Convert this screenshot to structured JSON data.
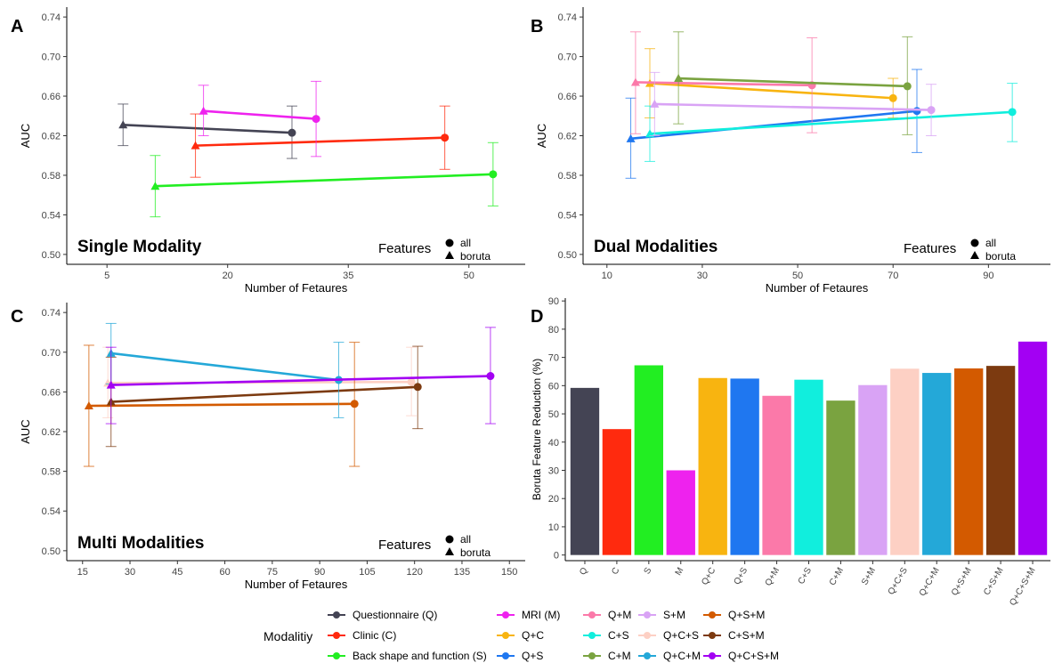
{
  "colors": {
    "Q": "#444454",
    "C": "#ff2a0e",
    "S": "#22ee22",
    "M": "#ee22ee",
    "Q+C": "#f8b410",
    "Q+S": "#1f77f0",
    "Q+M": "#fb79a9",
    "C+S": "#11eedd",
    "C+M": "#7aa340",
    "S+M": "#d9a3f5",
    "Q+C+S": "#fdd0c4",
    "Q+C+M": "#24a8d8",
    "Q+S+M": "#d35a00",
    "C+S+M": "#7c3a10",
    "Q+C+S+M": "#a300f3"
  },
  "panels": {
    "A": {
      "letter": "A",
      "inset_title": "Single Modality",
      "legend_title": "Features",
      "legend_all": "all",
      "legend_boruta": "boruta"
    },
    "B": {
      "letter": "B",
      "inset_title": "Dual Modalities",
      "legend_title": "Features",
      "legend_all": "all",
      "legend_boruta": "boruta"
    },
    "C": {
      "letter": "C",
      "inset_title": "Multi Modalities",
      "legend_title": "Features",
      "legend_all": "all",
      "legend_boruta": "boruta"
    },
    "D": {
      "letter": "D"
    }
  },
  "modality_legend": {
    "title": "Modalitiy",
    "items": [
      {
        "key": "Q",
        "label": "Questionnaire (Q)"
      },
      {
        "key": "C",
        "label": "Clinic (C)"
      },
      {
        "key": "S",
        "label": "Back shape and function (S)"
      },
      {
        "key": "M",
        "label": "MRI (M)"
      },
      {
        "key": "Q+C",
        "label": "Q+C"
      },
      {
        "key": "Q+S",
        "label": "Q+S"
      },
      {
        "key": "Q+M",
        "label": "Q+M"
      },
      {
        "key": "C+S",
        "label": "C+S"
      },
      {
        "key": "C+M",
        "label": "C+M"
      },
      {
        "key": "S+M",
        "label": "S+M"
      },
      {
        "key": "Q+C+S",
        "label": "Q+C+S"
      },
      {
        "key": "Q+C+M",
        "label": "Q+C+M"
      },
      {
        "key": "Q+S+M",
        "label": "Q+S+M"
      },
      {
        "key": "C+S+M",
        "label": "C+S+M"
      },
      {
        "key": "Q+C+S+M",
        "label": "Q+C+S+M"
      }
    ]
  },
  "chart_data": [
    {
      "panel": "A",
      "type": "line",
      "xlabel": "Number of Fetaures",
      "ylabel": "AUC",
      "xlim": [
        0,
        57
      ],
      "ylim": [
        0.49,
        0.75
      ],
      "xticks": [
        5,
        20,
        35,
        50
      ],
      "yticks": [
        "0.50",
        "0.54",
        "0.58",
        "0.62",
        "0.66",
        "0.70",
        "0.74"
      ],
      "series": [
        {
          "key": "Q",
          "boruta": {
            "x": 7,
            "y": 0.631,
            "lo": 0.61,
            "hi": 0.652
          },
          "all": {
            "x": 28,
            "y": 0.623,
            "lo": 0.597,
            "hi": 0.65
          }
        },
        {
          "key": "C",
          "boruta": {
            "x": 16,
            "y": 0.61,
            "lo": 0.578,
            "hi": 0.642
          },
          "all": {
            "x": 47,
            "y": 0.618,
            "lo": 0.586,
            "hi": 0.65
          }
        },
        {
          "key": "S",
          "boruta": {
            "x": 11,
            "y": 0.569,
            "lo": 0.538,
            "hi": 0.6
          },
          "all": {
            "x": 53,
            "y": 0.581,
            "lo": 0.549,
            "hi": 0.613
          }
        },
        {
          "key": "M",
          "boruta": {
            "x": 17,
            "y": 0.645,
            "lo": 0.62,
            "hi": 0.671
          },
          "all": {
            "x": 31,
            "y": 0.637,
            "lo": 0.599,
            "hi": 0.675
          }
        }
      ]
    },
    {
      "panel": "B",
      "type": "line",
      "xlabel": "Number of Fetaures",
      "ylabel": "AUC",
      "xlim": [
        5,
        103
      ],
      "ylim": [
        0.49,
        0.75
      ],
      "xticks": [
        10,
        30,
        50,
        70,
        90
      ],
      "yticks": [
        "0.50",
        "0.54",
        "0.58",
        "0.62",
        "0.66",
        "0.70",
        "0.74"
      ],
      "series": [
        {
          "key": "Q+C",
          "boruta": {
            "x": 19,
            "y": 0.673,
            "lo": 0.638,
            "hi": 0.708
          },
          "all": {
            "x": 70,
            "y": 0.658,
            "lo": 0.638,
            "hi": 0.678
          }
        },
        {
          "key": "Q+S",
          "boruta": {
            "x": 15,
            "y": 0.617,
            "lo": 0.577,
            "hi": 0.658
          },
          "all": {
            "x": 75,
            "y": 0.645,
            "lo": 0.603,
            "hi": 0.687
          }
        },
        {
          "key": "Q+M",
          "boruta": {
            "x": 16,
            "y": 0.674,
            "lo": 0.622,
            "hi": 0.725
          },
          "all": {
            "x": 53,
            "y": 0.671,
            "lo": 0.623,
            "hi": 0.719
          }
        },
        {
          "key": "C+S",
          "boruta": {
            "x": 19,
            "y": 0.622,
            "lo": 0.594,
            "hi": 0.65
          },
          "all": {
            "x": 95,
            "y": 0.644,
            "lo": 0.614,
            "hi": 0.673
          }
        },
        {
          "key": "C+M",
          "boruta": {
            "x": 25,
            "y": 0.678,
            "lo": 0.632,
            "hi": 0.725
          },
          "all": {
            "x": 73,
            "y": 0.67,
            "lo": 0.621,
            "hi": 0.72
          }
        },
        {
          "key": "S+M",
          "boruta": {
            "x": 20,
            "y": 0.652,
            "lo": 0.62,
            "hi": 0.684
          },
          "all": {
            "x": 78,
            "y": 0.646,
            "lo": 0.62,
            "hi": 0.672
          }
        }
      ]
    },
    {
      "panel": "C",
      "type": "line",
      "xlabel": "Number of Fetaures",
      "ylabel": "AUC",
      "xlim": [
        10,
        155
      ],
      "ylim": [
        0.49,
        0.75
      ],
      "xticks": [
        15,
        30,
        45,
        60,
        75,
        90,
        105,
        120,
        135,
        150
      ],
      "yticks": [
        "0.50",
        "0.54",
        "0.58",
        "0.62",
        "0.66",
        "0.70",
        "0.74"
      ],
      "series": [
        {
          "key": "Q+C+S",
          "boruta": {
            "x": 23,
            "y": 0.669,
            "lo": 0.634,
            "hi": 0.705
          },
          "all": {
            "x": 119,
            "y": 0.67,
            "lo": 0.636,
            "hi": 0.705
          }
        },
        {
          "key": "Q+S+M",
          "boruta": {
            "x": 17,
            "y": 0.646,
            "lo": 0.585,
            "hi": 0.707
          },
          "all": {
            "x": 101,
            "y": 0.648,
            "lo": 0.585,
            "hi": 0.71
          }
        },
        {
          "key": "C+S+M",
          "boruta": {
            "x": 24,
            "y": 0.65,
            "lo": 0.605,
            "hi": 0.695
          },
          "all": {
            "x": 121,
            "y": 0.665,
            "lo": 0.623,
            "hi": 0.706
          }
        },
        {
          "key": "Q+C+M",
          "boruta": {
            "x": 24,
            "y": 0.699,
            "lo": 0.668,
            "hi": 0.729
          },
          "all": {
            "x": 96,
            "y": 0.672,
            "lo": 0.634,
            "hi": 0.71
          }
        },
        {
          "key": "Q+C+S+M",
          "boruta": {
            "x": 24,
            "y": 0.667,
            "lo": 0.628,
            "hi": 0.705
          },
          "all": {
            "x": 144,
            "y": 0.676,
            "lo": 0.628,
            "hi": 0.725
          }
        }
      ]
    },
    {
      "panel": "D",
      "type": "bar",
      "ylabel": "Boruta Feature Reduction (%)",
      "ylim": [
        -2,
        91
      ],
      "yticks": [
        0,
        10,
        20,
        30,
        40,
        50,
        60,
        70,
        80,
        90
      ],
      "categories": [
        "Q",
        "C",
        "S",
        "M",
        "Q+C",
        "Q+S",
        "Q+M",
        "C+S",
        "C+M",
        "S+M",
        "Q+C+S",
        "Q+C+M",
        "Q+S+M",
        "C+S+M",
        "Q+C+S+M"
      ],
      "values": [
        59.2,
        44.6,
        67.2,
        30.0,
        62.7,
        62.5,
        56.4,
        62.1,
        54.7,
        60.2,
        66.0,
        64.5,
        66.1,
        67.0,
        75.6
      ]
    }
  ]
}
